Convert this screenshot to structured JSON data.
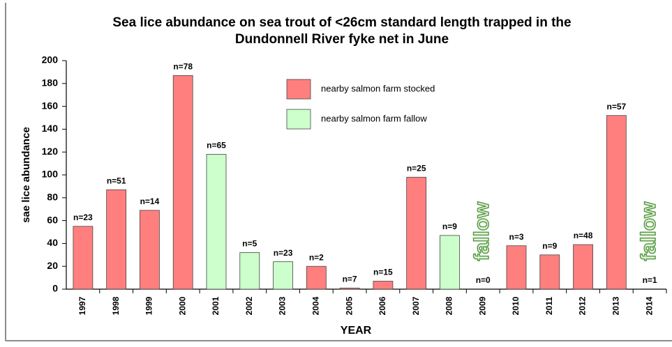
{
  "chart_data": {
    "type": "bar",
    "title": [
      "Sea lice abundance on sea trout of <26cm standard length trapped in the",
      "Dundonnell River fyke net in June"
    ],
    "x_label": "YEAR",
    "y_label": "sae lice abundance",
    "categories": [
      "1997",
      "1998",
      "1999",
      "2000",
      "2001",
      "2002",
      "2003",
      "2004",
      "2005",
      "2006",
      "2007",
      "2008",
      "2009",
      "2010",
      "2011",
      "2012",
      "2013",
      "2014"
    ],
    "series": [
      {
        "name": "nearby salmon farm stocked",
        "color": "#ff7f7f",
        "values": [
          55,
          87,
          69,
          187,
          null,
          null,
          null,
          20,
          1,
          7,
          98,
          null,
          null,
          38,
          30,
          39,
          152,
          null
        ]
      },
      {
        "name": "nearby salmon farm fallow",
        "color": "#ccffcc",
        "values": [
          null,
          null,
          null,
          null,
          118,
          32,
          24,
          null,
          null,
          null,
          null,
          47,
          null,
          null,
          null,
          null,
          null,
          null
        ]
      }
    ],
    "n_labels": [
      "n=23",
      "n=51",
      "n=14",
      "n=78",
      "n=65",
      "n=5",
      "n=23",
      "n=2",
      "n=7",
      "n=15",
      "n=25",
      "n=9",
      "n=0",
      "n=3",
      "n=9",
      "n=48",
      "n=57",
      "n=1"
    ],
    "annotations": [
      {
        "category": "2009",
        "text": "fallow"
      },
      {
        "category": "2014",
        "text": "fallow"
      }
    ],
    "ylim": [
      0,
      200
    ],
    "yticks": [
      0,
      20,
      40,
      60,
      80,
      100,
      120,
      140,
      160,
      180,
      200
    ],
    "grid": false
  }
}
